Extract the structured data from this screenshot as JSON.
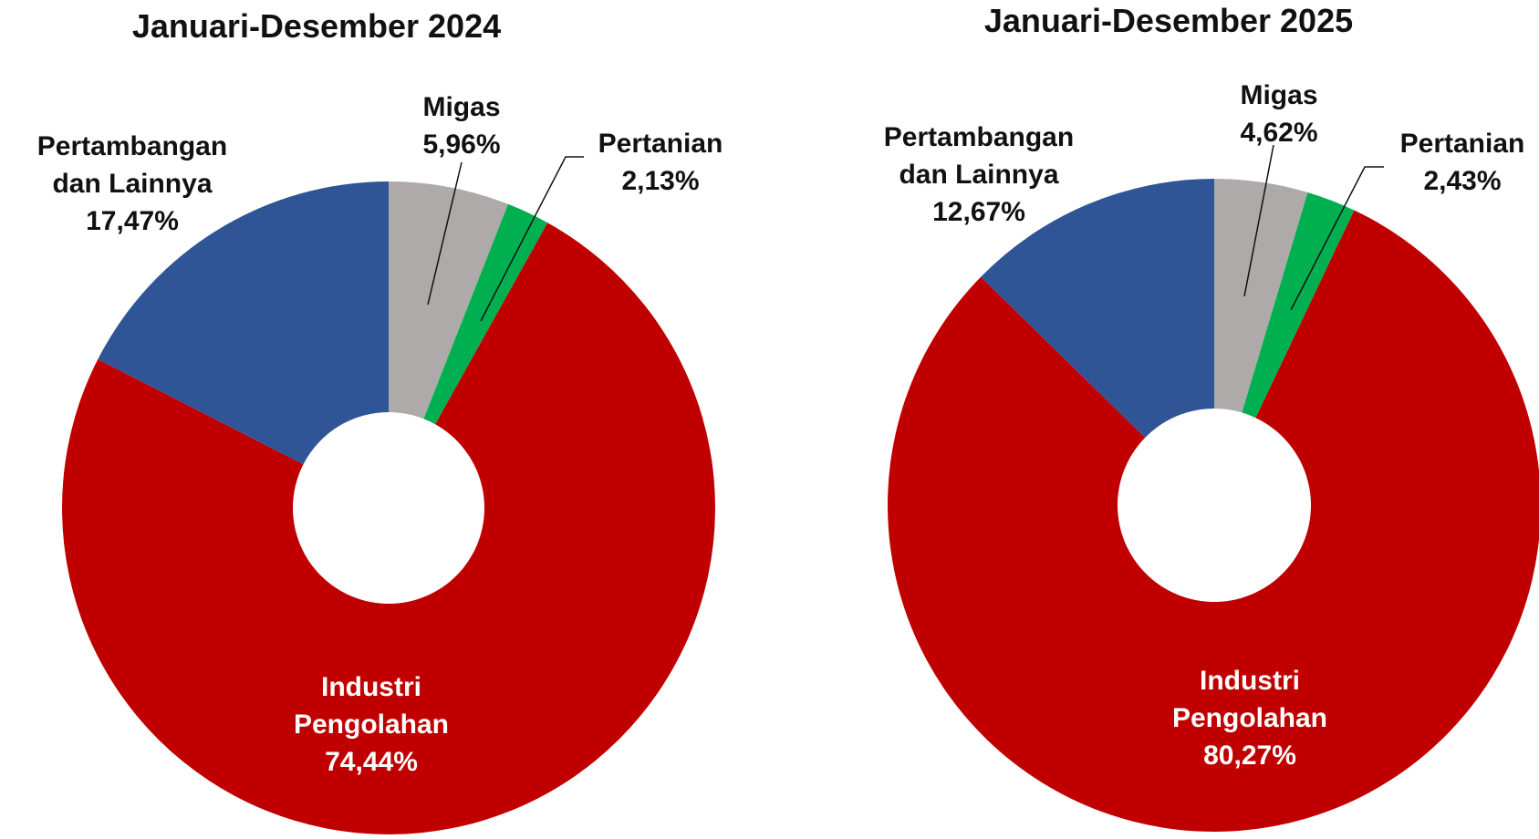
{
  "chart_data": [
    {
      "type": "donut",
      "title": "Januari-Desember 2024",
      "categories": [
        "Migas",
        "Pertanian",
        "Industri Pengolahan",
        "Pertambangan dan Lainnya"
      ],
      "values": [
        5.96,
        2.13,
        74.44,
        17.47
      ],
      "value_labels": [
        "5,96%",
        "2,13%",
        "74,44%",
        "17,47%"
      ],
      "colors": [
        "#aeaaaa",
        "#00b050",
        "#c00000",
        "#2f5597"
      ]
    },
    {
      "type": "donut",
      "title": "Januari-Desember 2025",
      "categories": [
        "Migas",
        "Pertanian",
        "Industri Pengolahan",
        "Pertambangan dan Lainnya"
      ],
      "values": [
        4.62,
        2.43,
        80.27,
        12.67
      ],
      "value_labels": [
        "4,62%",
        "2,43%",
        "80,27%",
        "12,67%"
      ],
      "colors": [
        "#aeaaaa",
        "#00b050",
        "#c00000",
        "#2f5597"
      ]
    }
  ]
}
